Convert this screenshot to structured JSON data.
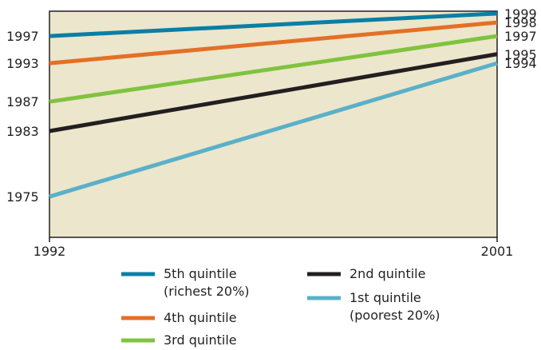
{
  "chart_data": {
    "type": "line",
    "x": [
      1992,
      2001
    ],
    "xlim": [
      1992,
      2001
    ],
    "x_tick_labels": [
      "1992",
      "2001"
    ],
    "background_color": "#ece6cc",
    "series": [
      {
        "name": "5th quintile",
        "legend_lines": [
          "5th quintile",
          "(richest 20%)"
        ],
        "left_label": "1997",
        "right_label": "1999",
        "values": [
          0.89,
          0.99
        ],
        "color": "#0a7fa5"
      },
      {
        "name": "4th quintile",
        "legend_lines": [
          "4th quintile"
        ],
        "left_label": "1993",
        "right_label": "1998",
        "values": [
          0.77,
          0.95
        ],
        "color": "#e46f26"
      },
      {
        "name": "3rd quintile",
        "legend_lines": [
          "3rd quintile"
        ],
        "left_label": "1987",
        "right_label": "1997",
        "values": [
          0.6,
          0.89
        ],
        "color": "#7fc33f"
      },
      {
        "name": "2nd quintile",
        "legend_lines": [
          "2nd quintile"
        ],
        "left_label": "1983",
        "right_label": "1995",
        "values": [
          0.47,
          0.81
        ],
        "color": "#231f20"
      },
      {
        "name": "1st quintile",
        "legend_lines": [
          "1st quintile",
          "(poorest 20%)"
        ],
        "left_label": "1975",
        "right_label": "1994",
        "values": [
          0.18,
          0.77
        ],
        "color": "#5ab0c8"
      }
    ]
  }
}
